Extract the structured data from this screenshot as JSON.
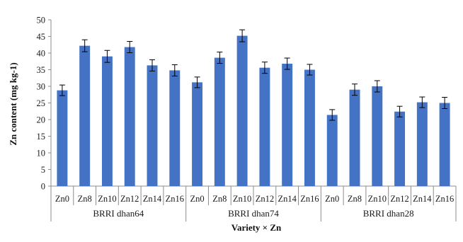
{
  "chart_data": {
    "type": "bar",
    "title": "",
    "xlabel": "Variety  × Zn",
    "ylabel": "Zn content (mg kg-1)",
    "ylim": [
      0,
      50
    ],
    "yticks": [
      0,
      5,
      10,
      15,
      20,
      25,
      30,
      35,
      40,
      45,
      50
    ],
    "grid": false,
    "legend": "none",
    "bar_color": "#4472c4",
    "groups": [
      {
        "label": "BRRI dhan64",
        "categories": [
          "Zn0",
          "Zn8",
          "Zn10",
          "Zn12",
          "Zn14",
          "Zn16"
        ],
        "values": [
          28.8,
          42.2,
          39.0,
          41.8,
          36.3,
          34.8
        ],
        "errors": [
          1.6,
          1.8,
          1.8,
          1.7,
          1.7,
          1.7
        ]
      },
      {
        "label": "BRRI dhan74",
        "categories": [
          "Zn0",
          "Zn8",
          "Zn10",
          "Zn12",
          "Zn14",
          "Zn16"
        ],
        "values": [
          31.2,
          38.6,
          45.2,
          35.6,
          36.8,
          35.0
        ],
        "errors": [
          1.6,
          1.7,
          1.8,
          1.7,
          1.7,
          1.6
        ]
      },
      {
        "label": "BRRI dhan28",
        "categories": [
          "Zn0",
          "Zn8",
          "Zn10",
          "Zn12",
          "Zn14",
          "Zn16"
        ],
        "values": [
          21.4,
          29.0,
          30.0,
          22.4,
          25.2,
          25.0
        ],
        "errors": [
          1.6,
          1.7,
          1.7,
          1.6,
          1.6,
          1.7
        ]
      }
    ]
  }
}
